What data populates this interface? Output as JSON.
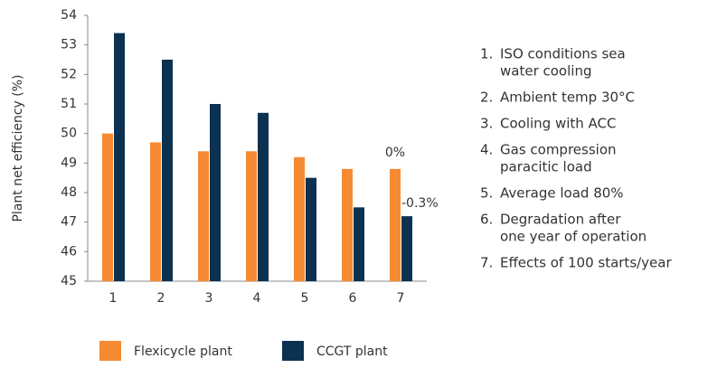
{
  "chart_data": {
    "type": "bar",
    "y_label": "Plant net efficiency (%)",
    "categories": [
      "1",
      "2",
      "3",
      "4",
      "5",
      "6",
      "7"
    ],
    "series": [
      {
        "name": "Flexicycle plant",
        "color": "#f58a32",
        "values": [
          50.0,
          49.7,
          49.4,
          49.4,
          49.2,
          48.8,
          48.8
        ]
      },
      {
        "name": "CCGT plant",
        "color": "#0d3151",
        "values": [
          53.4,
          52.5,
          51.0,
          50.7,
          48.5,
          47.5,
          47.2
        ]
      }
    ],
    "annotations": [
      "0%",
      "-0.3%"
    ],
    "ylim": [
      45,
      54
    ],
    "yticks": [
      45,
      46,
      47,
      48,
      49,
      50,
      51,
      52,
      53,
      54
    ],
    "grid": false,
    "legend": "bottom",
    "notes": [
      {
        "number": "1.",
        "lines": [
          "ISO conditions sea",
          "water cooling"
        ]
      },
      {
        "number": "2.",
        "lines": [
          "Ambient temp 30°C"
        ]
      },
      {
        "number": "3.",
        "lines": [
          "Cooling with ACC"
        ]
      },
      {
        "number": "4.",
        "lines": [
          "Gas compression",
          "paracitic load"
        ]
      },
      {
        "number": "5.",
        "lines": [
          "Average load 80%"
        ]
      },
      {
        "number": "6.",
        "lines": [
          "Degradation after",
          "one year of operation"
        ]
      },
      {
        "number": "7.",
        "lines": [
          "Effects of 100 starts/year"
        ]
      }
    ]
  }
}
